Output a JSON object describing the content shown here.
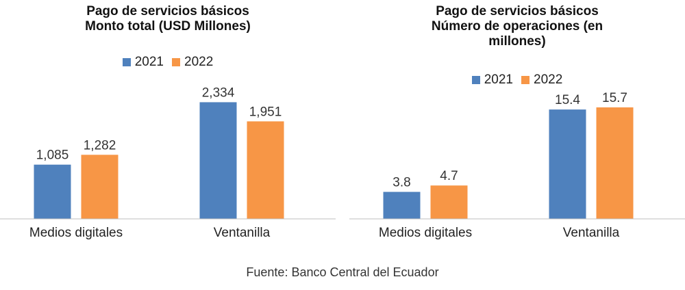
{
  "chart_data": [
    {
      "type": "bar",
      "title_lines": [
        "Pago de servicios básicos",
        "Monto total (USD Millones)"
      ],
      "categories": [
        "Medios digitales",
        "Ventanilla"
      ],
      "series": [
        {
          "name": "2021",
          "values": [
            1085,
            2334
          ],
          "labels": [
            "1,085",
            "2,334"
          ],
          "color": "#4f81bd"
        },
        {
          "name": "2022",
          "values": [
            1282,
            1951
          ],
          "labels": [
            "1,282",
            "1,951"
          ],
          "color": "#f79646"
        }
      ],
      "ylim": [
        0,
        2600
      ],
      "grid": false,
      "legend": "top-center"
    },
    {
      "type": "bar",
      "title_lines": [
        "Pago de servicios básicos",
        "Número de operaciones (en",
        "millones)"
      ],
      "categories": [
        "Medios digitales",
        "Ventanilla"
      ],
      "series": [
        {
          "name": "2021",
          "values": [
            3.8,
            15.4
          ],
          "labels": [
            "3.8",
            "15.4"
          ],
          "color": "#4f81bd"
        },
        {
          "name": "2022",
          "values": [
            4.7,
            15.7
          ],
          "labels": [
            "4.7",
            "15.7"
          ],
          "color": "#f79646"
        }
      ],
      "ylim": [
        0,
        18.3
      ],
      "grid": false,
      "legend": "top-center"
    }
  ],
  "footer": {
    "source": "Fuente: Banco Central del Ecuador"
  }
}
